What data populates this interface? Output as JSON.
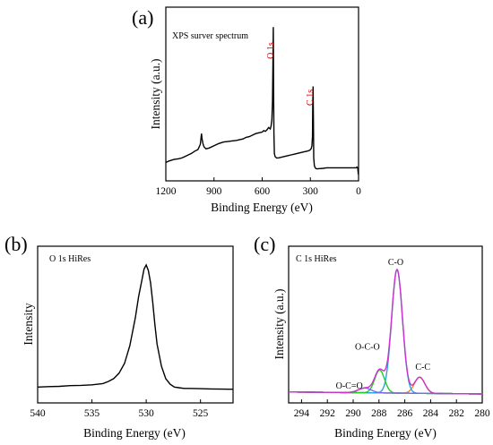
{
  "chart_data": [
    {
      "panel_label": "(a)",
      "type": "line",
      "title": "XPS surver spectrum",
      "xlabel": "Binding Energy (eV)",
      "ylabel": "Intensity (a.u.)",
      "xlim": [
        1200,
        0
      ],
      "ylim": [
        0,
        100
      ],
      "x_reversed": true,
      "xticks": [
        1200,
        900,
        600,
        300,
        0
      ],
      "show_y_ticks": false,
      "line_color": "#000000",
      "annotation_color": "#cc0000",
      "annotations": [
        {
          "text": "O 1s",
          "x": 531,
          "y": 84,
          "rotate": -90
        },
        {
          "text": "C 1s",
          "x": 284,
          "y": 53,
          "rotate": -90
        }
      ],
      "series": [
        {
          "x": [
            1200,
            1180,
            1150,
            1120,
            1100,
            1080,
            1060,
            1040,
            1020,
            1000,
            985,
            978,
            975,
            970,
            965,
            960,
            950,
            930,
            900,
            870,
            840,
            800,
            760,
            720,
            700,
            680,
            660,
            640,
            620,
            600,
            590,
            580,
            570,
            560,
            550,
            545,
            540,
            536,
            533,
            531,
            529,
            527,
            524,
            520,
            515,
            510,
            500,
            480,
            460,
            440,
            420,
            400,
            380,
            360,
            340,
            320,
            305,
            295,
            290,
            287,
            285,
            283,
            281,
            279,
            275,
            270,
            265,
            260,
            240,
            220,
            200,
            180,
            150,
            120,
            90,
            60,
            30,
            15,
            10,
            5,
            2,
            0
          ],
          "y": [
            5,
            6,
            7,
            7.5,
            8,
            9,
            10,
            11,
            12.5,
            13.5,
            17,
            24,
            21,
            18,
            16,
            15,
            14,
            14.5,
            16,
            17.5,
            18.5,
            19,
            19.5,
            20.5,
            21.5,
            22,
            23,
            24,
            24.5,
            25,
            26,
            25.5,
            26.5,
            28,
            27,
            29,
            33,
            45,
            70,
            94,
            55,
            24,
            11,
            9,
            8.5,
            8,
            8,
            8.5,
            9,
            9.5,
            10,
            10.5,
            11,
            11.5,
            12,
            12.5,
            13,
            14,
            16,
            22,
            42,
            55,
            30,
            8,
            3,
            1.5,
            1,
            0.8,
            1,
            1.2,
            1.5,
            1.5,
            1.5,
            1.5,
            1.5,
            1.5,
            1.5,
            1.5,
            2,
            1.5,
            -2,
            -3
          ]
        }
      ]
    },
    {
      "panel_label": "(b)",
      "type": "line",
      "title": "O 1s HiRes",
      "xlabel": "Binding Energy (eV)",
      "ylabel": "Intensity",
      "xlim": [
        540,
        522
      ],
      "ylim": [
        0,
        100
      ],
      "x_reversed": true,
      "xticks": [
        540,
        535,
        530,
        525
      ],
      "show_y_ticks": false,
      "line_color": "#000000",
      "series": [
        {
          "x": [
            540,
            539,
            538,
            537,
            536,
            535,
            534,
            533.5,
            533,
            532.5,
            532,
            531.5,
            531,
            530.7,
            530.4,
            530.2,
            530.0,
            529.8,
            529.6,
            529.4,
            529.2,
            529.0,
            528.6,
            528.2,
            527.8,
            527.4,
            527,
            526.5,
            526,
            525,
            524,
            523,
            522
          ],
          "y": [
            5,
            5.3,
            5.5,
            6,
            6.2,
            6.6,
            7.5,
            9,
            11,
            15,
            22,
            35,
            55,
            70,
            82,
            90,
            93,
            89,
            80,
            66,
            50,
            36,
            20,
            11,
            7,
            5,
            4.5,
            4,
            4,
            3.8,
            3.6,
            3.5,
            3.4
          ]
        }
      ]
    },
    {
      "panel_label": "(c)",
      "type": "line",
      "title": "C 1s HiRes",
      "xlabel": "Binding Energy (eV)",
      "ylabel": "Intensity (a.u.)",
      "xlim": [
        295,
        280
      ],
      "ylim": [
        0,
        100
      ],
      "x_reversed": true,
      "xticks": [
        294,
        292,
        290,
        288,
        286,
        284,
        282,
        280
      ],
      "show_y_ticks": false,
      "annotations": [
        {
          "text": "C-O",
          "x": 286.7,
          "y": 96
        },
        {
          "text": "O-C-O",
          "x": 288.9,
          "y": 33
        },
        {
          "text": "C-C",
          "x": 284.6,
          "y": 18
        },
        {
          "text": "O-C=O",
          "x": 290.3,
          "y": 4
        }
      ],
      "background": {
        "name": "background",
        "color": "#8bc34a",
        "x": [
          295,
          280
        ],
        "y": [
          1.5,
          0
        ]
      },
      "peaks": [
        {
          "name": "C-C",
          "color": "#ff7f0e",
          "center": 284.85,
          "height": 12,
          "sigma": 0.4
        },
        {
          "name": "C-O",
          "color": "#29a3e0",
          "center": 286.6,
          "height": 92,
          "sigma": 0.42
        },
        {
          "name": "O-C-O",
          "color": "#22cc22",
          "center": 287.95,
          "height": 17,
          "sigma": 0.38
        },
        {
          "name": "O-C=O",
          "color": "#7b68ee",
          "center": 289.1,
          "height": 3.5,
          "sigma": 0.5
        }
      ],
      "envelope_color": "#cc33cc"
    }
  ]
}
